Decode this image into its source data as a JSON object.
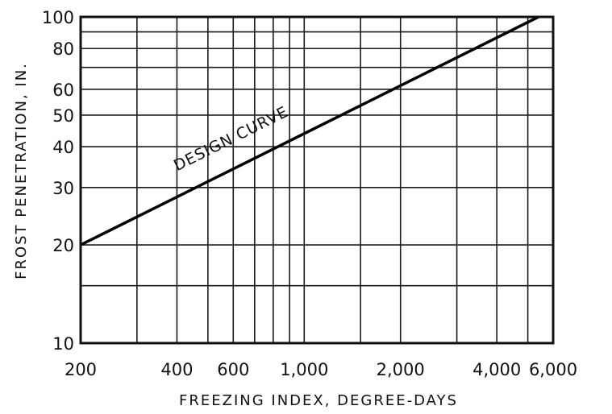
{
  "chart_data": {
    "type": "line",
    "title": "",
    "xlabel": "FREEZING INDEX, DEGREE-DAYS",
    "ylabel": "FROST PENETRATION, IN.",
    "xscale": "log",
    "yscale": "log",
    "xlim": [
      200,
      6000
    ],
    "ylim": [
      10,
      100
    ],
    "grid": true,
    "x_gridlines": [
      300,
      400,
      500,
      600,
      700,
      800,
      900,
      1000,
      1500,
      2000,
      3000,
      4000,
      5000
    ],
    "y_gridlines": [
      15,
      20,
      30,
      40,
      50,
      60,
      70,
      80,
      90
    ],
    "x_ticks": [
      {
        "value": 200,
        "label": "200"
      },
      {
        "value": 400,
        "label": "400"
      },
      {
        "value": 600,
        "label": "600"
      },
      {
        "value": 1000,
        "label": "1,000"
      },
      {
        "value": 2000,
        "label": "2,000"
      },
      {
        "value": 4000,
        "label": "4,000"
      },
      {
        "value": 6000,
        "label": "6,000"
      }
    ],
    "y_ticks": [
      {
        "value": 10,
        "label": "10"
      },
      {
        "value": 20,
        "label": "20"
      },
      {
        "value": 30,
        "label": "30"
      },
      {
        "value": 40,
        "label": "40"
      },
      {
        "value": 50,
        "label": "50"
      },
      {
        "value": 60,
        "label": "60"
      },
      {
        "value": 80,
        "label": "80"
      },
      {
        "value": 100,
        "label": "100"
      }
    ],
    "series": [
      {
        "name": "DESIGN CURVE",
        "x": [
          200,
          5400
        ],
        "y": [
          20,
          100
        ]
      }
    ],
    "annotations": [
      {
        "text": "DESIGN CURVE",
        "x": 600,
        "y": 41
      }
    ]
  }
}
